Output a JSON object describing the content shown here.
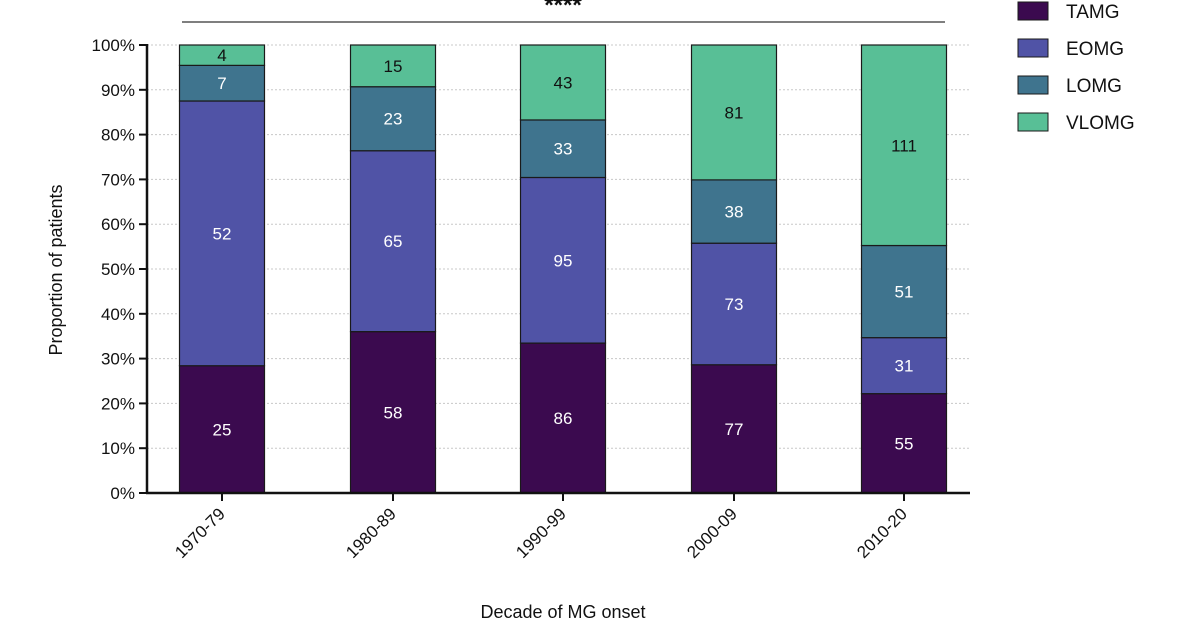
{
  "chart_data": {
    "type": "bar",
    "stacked": true,
    "normalized": true,
    "categories": [
      "1970-79",
      "1980-89",
      "1990-99",
      "2000-09",
      "2010-20"
    ],
    "series": [
      {
        "name": "TAMG",
        "color": "#3b0a4f",
        "label_color": "#ffffff",
        "values": [
          25,
          58,
          86,
          77,
          55
        ]
      },
      {
        "name": "EOMG",
        "color": "#5053a6",
        "label_color": "#ffffff",
        "values": [
          52,
          65,
          95,
          73,
          31
        ]
      },
      {
        "name": "LOMG",
        "color": "#3f748e",
        "label_color": "#ffffff",
        "values": [
          7,
          23,
          33,
          38,
          51
        ]
      },
      {
        "name": "VLOMG",
        "color": "#58bf96",
        "label_color": "#111111",
        "values": [
          4,
          15,
          43,
          81,
          111
        ]
      }
    ],
    "xlabel": "Decade of MG onset",
    "ylabel": "Proportion of patients",
    "ylim": [
      0,
      100
    ],
    "yticks": [
      "0%",
      "10%",
      "20%",
      "30%",
      "40%",
      "50%",
      "60%",
      "70%",
      "80%",
      "90%",
      "100%"
    ],
    "significance": "****",
    "legend_position": "top-right",
    "grid": true
  }
}
